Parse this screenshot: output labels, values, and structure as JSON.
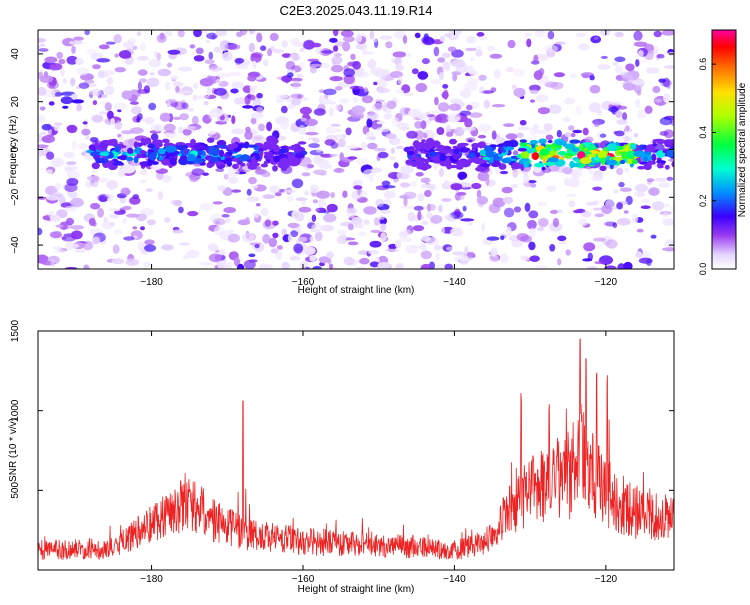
{
  "title": "C2E3.2025.043.11.19.R14",
  "chart_data": [
    {
      "type": "heatmap",
      "title": "C2E3.2025.043.11.19.R14",
      "xlabel": "Height of straight line (km)",
      "ylabel": "Frequency (Hz)",
      "xlim": [
        -195,
        -111
      ],
      "ylim": [
        -50,
        50
      ],
      "xticks": [
        -180,
        -160,
        -140,
        -120
      ],
      "yticks": [
        -40,
        -20,
        0,
        20,
        40
      ],
      "colorbar": {
        "label": "Normalized spectral amplitude",
        "range": [
          0,
          0.7
        ],
        "ticks": [
          0.0,
          0.2,
          0.4,
          0.6
        ]
      },
      "bright_band": {
        "frequency_center": -2,
        "frequency_halfwidth": 6,
        "segments": [
          {
            "x_start": -188,
            "x_end": -166,
            "peak": 0.3
          },
          {
            "x_start": -166,
            "x_end": -160,
            "peak": 0.2
          },
          {
            "x_start": -146,
            "x_end": -136,
            "peak": 0.2
          },
          {
            "x_start": -136,
            "x_end": -131,
            "peak": 0.35
          },
          {
            "x_start": -131,
            "x_end": -116,
            "peak": 0.7
          },
          {
            "x_start": -116,
            "x_end": -111,
            "peak": 0.3
          }
        ]
      },
      "grid": false
    },
    {
      "type": "line",
      "xlabel": "Height of straight line (km)",
      "ylabel": "SNR (10 * v/v)",
      "xlim": [
        -195,
        -111
      ],
      "ylim": [
        0,
        1500
      ],
      "xticks": [
        -180,
        -160,
        -140,
        -120
      ],
      "yticks": [
        500,
        1000,
        1500
      ],
      "color": "#ee2222",
      "envelope": [
        {
          "x": -195,
          "base": 150,
          "spread": 130
        },
        {
          "x": -185,
          "base": 160,
          "spread": 130
        },
        {
          "x": -178,
          "base": 300,
          "spread": 300
        },
        {
          "x": -175,
          "base": 330,
          "spread": 350
        },
        {
          "x": -170,
          "base": 230,
          "spread": 250
        },
        {
          "x": -165,
          "base": 200,
          "spread": 200
        },
        {
          "x": -160,
          "base": 180,
          "spread": 180
        },
        {
          "x": -150,
          "base": 170,
          "spread": 150
        },
        {
          "x": -140,
          "base": 150,
          "spread": 130
        },
        {
          "x": -136,
          "base": 180,
          "spread": 160
        },
        {
          "x": -133,
          "base": 300,
          "spread": 300
        },
        {
          "x": -130,
          "base": 350,
          "spread": 450
        },
        {
          "x": -126,
          "base": 380,
          "spread": 550
        },
        {
          "x": -123,
          "base": 450,
          "spread": 650
        },
        {
          "x": -120,
          "base": 350,
          "spread": 450
        },
        {
          "x": -116,
          "base": 280,
          "spread": 320
        },
        {
          "x": -111,
          "base": 260,
          "spread": 300
        }
      ],
      "spikes": [
        {
          "x": -167.9,
          "y": 1080
        },
        {
          "x": -131.2,
          "y": 1130
        },
        {
          "x": -123.4,
          "y": 1500
        },
        {
          "x": -122.6,
          "y": 1380
        },
        {
          "x": -121.2,
          "y": 1300
        },
        {
          "x": -127.5,
          "y": 1050
        },
        {
          "x": -119.8,
          "y": 1250
        }
      ],
      "grid": false
    }
  ]
}
